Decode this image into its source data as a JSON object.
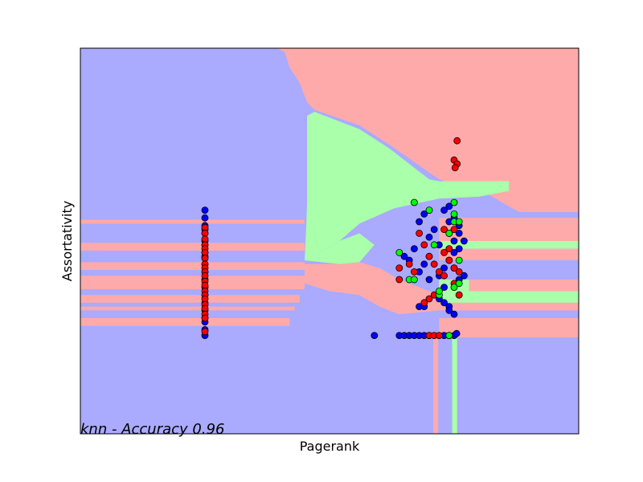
{
  "chart_data": {
    "type": "scatter",
    "title": "",
    "xlabel": "Pagerank",
    "ylabel": "Assortativity",
    "annotation": "knn - Accuracy 0.96",
    "xlim": [
      0,
      1
    ],
    "ylim": [
      0,
      1
    ],
    "grid": false,
    "ticks_visible": false,
    "colors": {
      "region_blue": "#aaaaff",
      "region_red": "#ffaaaa",
      "region_green": "#aaffaa",
      "point_blue": "#0000ff",
      "point_red": "#ff0000",
      "point_green": "#00ff00",
      "point_edge": "#000000"
    },
    "decision_regions": [
      {
        "class": "red",
        "polygon": [
          [
            0.395,
            1
          ],
          [
            1,
            1
          ],
          [
            1,
            0.575
          ],
          [
            0.88,
            0.575
          ],
          [
            0.82,
            0.62
          ],
          [
            0.72,
            0.66
          ],
          [
            0.62,
            0.75
          ],
          [
            0.56,
            0.8
          ],
          [
            0.47,
            0.84
          ],
          [
            0.455,
            0.86
          ],
          [
            0.44,
            0.91
          ],
          [
            0.42,
            0.95
          ],
          [
            0.41,
            0.99
          ]
        ]
      },
      {
        "class": "green",
        "polygon": [
          [
            0.455,
            0.825
          ],
          [
            0.47,
            0.835
          ],
          [
            0.56,
            0.79
          ],
          [
            0.62,
            0.74
          ],
          [
            0.7,
            0.66
          ],
          [
            0.72,
            0.655
          ],
          [
            0.72,
            0.61
          ],
          [
            0.63,
            0.585
          ],
          [
            0.56,
            0.545
          ],
          [
            0.52,
            0.5
          ],
          [
            0.45,
            0.45
          ],
          [
            0.453,
            0.53
          ],
          [
            0.455,
            0.6
          ]
        ]
      },
      {
        "class": "green",
        "polygon": [
          [
            0.72,
            0.655
          ],
          [
            0.86,
            0.655
          ],
          [
            0.86,
            0.63
          ],
          [
            0.8,
            0.615
          ],
          [
            0.72,
            0.61
          ]
        ]
      },
      {
        "class": "green",
        "polygon": [
          [
            0.45,
            0.45
          ],
          [
            0.52,
            0.5
          ],
          [
            0.56,
            0.52
          ],
          [
            0.59,
            0.49
          ],
          [
            0.56,
            0.445
          ],
          [
            0.52,
            0.44
          ]
        ]
      },
      {
        "class": "red",
        "polygon": [
          [
            0.45,
            0.44
          ],
          [
            0.52,
            0.44
          ],
          [
            0.56,
            0.445
          ],
          [
            0.6,
            0.43
          ],
          [
            0.64,
            0.4
          ],
          [
            0.7,
            0.37
          ],
          [
            0.72,
            0.36
          ],
          [
            0.72,
            0.32
          ],
          [
            0.64,
            0.31
          ],
          [
            0.6,
            0.33
          ],
          [
            0.56,
            0.36
          ],
          [
            0.5,
            0.37
          ],
          [
            0.45,
            0.39
          ]
        ]
      },
      {
        "class": "red",
        "polygon": [
          [
            0.72,
            0.36
          ],
          [
            1,
            0.36
          ],
          [
            1,
            0.32
          ],
          [
            0.72,
            0.32
          ]
        ]
      },
      {
        "class": "red",
        "polygon": [
          [
            0.72,
            0.4
          ],
          [
            1,
            0.4
          ],
          [
            1,
            0.37
          ],
          [
            0.72,
            0.37
          ]
        ]
      },
      {
        "class": "red",
        "polygon": [
          [
            0.72,
            0.3
          ],
          [
            1,
            0.3
          ],
          [
            1,
            0.25
          ],
          [
            0.72,
            0.25
          ]
        ]
      },
      {
        "class": "green",
        "polygon": [
          [
            0.72,
            0.5
          ],
          [
            1,
            0.5
          ],
          [
            1,
            0.48
          ],
          [
            0.72,
            0.48
          ]
        ]
      },
      {
        "class": "green",
        "polygon": [
          [
            0.72,
            0.4
          ],
          [
            0.78,
            0.4
          ],
          [
            0.78,
            0.37
          ],
          [
            0.72,
            0.37
          ]
        ]
      },
      {
        "class": "green",
        "polygon": [
          [
            0.72,
            0.37
          ],
          [
            1,
            0.37
          ],
          [
            1,
            0.34
          ],
          [
            0.72,
            0.34
          ]
        ]
      },
      {
        "class": "red",
        "polygon": [
          [
            0.72,
            0.48
          ],
          [
            1,
            0.48
          ],
          [
            1,
            0.45
          ],
          [
            0.72,
            0.45
          ]
        ]
      },
      {
        "class": "red",
        "polygon": [
          [
            0.72,
            0.56
          ],
          [
            1,
            0.56
          ],
          [
            1,
            0.5
          ],
          [
            0.72,
            0.5
          ]
        ]
      },
      {
        "class": "red",
        "polygon": [
          [
            0,
            0.555
          ],
          [
            0.45,
            0.555
          ],
          [
            0.45,
            0.545
          ],
          [
            0,
            0.545
          ]
        ]
      },
      {
        "class": "red",
        "polygon": [
          [
            0,
            0.495
          ],
          [
            0.45,
            0.495
          ],
          [
            0.45,
            0.475
          ],
          [
            0,
            0.475
          ]
        ]
      },
      {
        "class": "red",
        "polygon": [
          [
            0,
            0.445
          ],
          [
            0.45,
            0.445
          ],
          [
            0.45,
            0.425
          ],
          [
            0,
            0.425
          ]
        ]
      },
      {
        "class": "red",
        "polygon": [
          [
            0,
            0.41
          ],
          [
            0.45,
            0.41
          ],
          [
            0.45,
            0.375
          ],
          [
            0,
            0.375
          ]
        ]
      },
      {
        "class": "red",
        "polygon": [
          [
            0,
            0.36
          ],
          [
            0.44,
            0.36
          ],
          [
            0.44,
            0.34
          ],
          [
            0,
            0.34
          ]
        ]
      },
      {
        "class": "red",
        "polygon": [
          [
            0,
            0.33
          ],
          [
            0.43,
            0.33
          ],
          [
            0.43,
            0.32
          ],
          [
            0,
            0.32
          ]
        ]
      },
      {
        "class": "red",
        "polygon": [
          [
            0,
            0.3
          ],
          [
            0.42,
            0.3
          ],
          [
            0.42,
            0.28
          ],
          [
            0,
            0.28
          ]
        ]
      },
      {
        "class": "red",
        "polygon": [
          [
            0.708,
            0.26
          ],
          [
            0.718,
            0.26
          ],
          [
            0.718,
            0
          ],
          [
            0.708,
            0
          ]
        ]
      },
      {
        "class": "green",
        "polygon": [
          [
            0.746,
            0.26
          ],
          [
            0.756,
            0.26
          ],
          [
            0.756,
            0
          ],
          [
            0.746,
            0
          ]
        ]
      }
    ],
    "series": [
      {
        "class": "blue",
        "points": [
          [
            0.25,
            0.58
          ],
          [
            0.25,
            0.56
          ],
          [
            0.25,
            0.54
          ],
          [
            0.25,
            0.53
          ],
          [
            0.25,
            0.52
          ],
          [
            0.25,
            0.5
          ],
          [
            0.25,
            0.49
          ],
          [
            0.25,
            0.47
          ],
          [
            0.25,
            0.46
          ],
          [
            0.25,
            0.44
          ],
          [
            0.25,
            0.42
          ],
          [
            0.25,
            0.4
          ],
          [
            0.25,
            0.38
          ],
          [
            0.25,
            0.36
          ],
          [
            0.25,
            0.34
          ],
          [
            0.25,
            0.32
          ],
          [
            0.25,
            0.3
          ],
          [
            0.25,
            0.29
          ],
          [
            0.25,
            0.27
          ],
          [
            0.25,
            0.255
          ],
          [
            0.59,
            0.255
          ],
          [
            0.64,
            0.255
          ],
          [
            0.65,
            0.255
          ],
          [
            0.66,
            0.255
          ],
          [
            0.67,
            0.255
          ],
          [
            0.68,
            0.255
          ],
          [
            0.69,
            0.255
          ],
          [
            0.7,
            0.255
          ],
          [
            0.73,
            0.255
          ],
          [
            0.74,
            0.255
          ],
          [
            0.75,
            0.255
          ],
          [
            0.755,
            0.26
          ],
          [
            0.65,
            0.46
          ],
          [
            0.66,
            0.45
          ],
          [
            0.67,
            0.48
          ],
          [
            0.68,
            0.42
          ],
          [
            0.69,
            0.44
          ],
          [
            0.7,
            0.51
          ],
          [
            0.7,
            0.46
          ],
          [
            0.71,
            0.53
          ],
          [
            0.72,
            0.49
          ],
          [
            0.72,
            0.41
          ],
          [
            0.73,
            0.43
          ],
          [
            0.73,
            0.38
          ],
          [
            0.73,
            0.34
          ],
          [
            0.74,
            0.45
          ],
          [
            0.74,
            0.52
          ],
          [
            0.74,
            0.55
          ],
          [
            0.75,
            0.5
          ],
          [
            0.75,
            0.47
          ],
          [
            0.75,
            0.43
          ],
          [
            0.76,
            0.52
          ],
          [
            0.76,
            0.48
          ],
          [
            0.76,
            0.4
          ],
          [
            0.76,
            0.36
          ],
          [
            0.74,
            0.33
          ],
          [
            0.72,
            0.35
          ],
          [
            0.7,
            0.4
          ],
          [
            0.68,
            0.33
          ],
          [
            0.69,
            0.57
          ],
          [
            0.68,
            0.55
          ],
          [
            0.73,
            0.58
          ],
          [
            0.74,
            0.59
          ],
          [
            0.75,
            0.56
          ],
          [
            0.76,
            0.54
          ],
          [
            0.77,
            0.5
          ],
          [
            0.77,
            0.41
          ],
          [
            0.75,
            0.31
          ],
          [
            0.74,
            0.32
          ],
          [
            0.69,
            0.33
          ]
        ]
      },
      {
        "class": "red",
        "points": [
          [
            0.25,
            0.535
          ],
          [
            0.25,
            0.52
          ],
          [
            0.25,
            0.505
          ],
          [
            0.25,
            0.49
          ],
          [
            0.25,
            0.48
          ],
          [
            0.25,
            0.47
          ],
          [
            0.25,
            0.455
          ],
          [
            0.25,
            0.44
          ],
          [
            0.25,
            0.43
          ],
          [
            0.25,
            0.42
          ],
          [
            0.25,
            0.41
          ],
          [
            0.25,
            0.395
          ],
          [
            0.25,
            0.385
          ],
          [
            0.25,
            0.37
          ],
          [
            0.25,
            0.36
          ],
          [
            0.25,
            0.35
          ],
          [
            0.25,
            0.335
          ],
          [
            0.25,
            0.325
          ],
          [
            0.25,
            0.31
          ],
          [
            0.25,
            0.3
          ],
          [
            0.25,
            0.265
          ],
          [
            0.756,
            0.76
          ],
          [
            0.75,
            0.71
          ],
          [
            0.756,
            0.7
          ],
          [
            0.752,
            0.69
          ],
          [
            0.68,
            0.52
          ],
          [
            0.69,
            0.49
          ],
          [
            0.66,
            0.44
          ],
          [
            0.64,
            0.43
          ],
          [
            0.64,
            0.4
          ],
          [
            0.67,
            0.42
          ],
          [
            0.7,
            0.46
          ],
          [
            0.71,
            0.44
          ],
          [
            0.72,
            0.42
          ],
          [
            0.73,
            0.47
          ],
          [
            0.74,
            0.48
          ],
          [
            0.74,
            0.45
          ],
          [
            0.75,
            0.43
          ],
          [
            0.75,
            0.39
          ],
          [
            0.76,
            0.42
          ],
          [
            0.76,
            0.36
          ],
          [
            0.73,
            0.41
          ],
          [
            0.71,
            0.36
          ],
          [
            0.7,
            0.35
          ],
          [
            0.69,
            0.34
          ],
          [
            0.73,
            0.53
          ],
          [
            0.74,
            0.52
          ],
          [
            0.75,
            0.53
          ],
          [
            0.7,
            0.255
          ],
          [
            0.71,
            0.255
          ],
          [
            0.72,
            0.255
          ]
        ]
      },
      {
        "class": "green",
        "points": [
          [
            0.67,
            0.6
          ],
          [
            0.7,
            0.58
          ],
          [
            0.75,
            0.6
          ],
          [
            0.75,
            0.55
          ],
          [
            0.74,
            0.52
          ],
          [
            0.71,
            0.49
          ],
          [
            0.64,
            0.47
          ],
          [
            0.66,
            0.4
          ],
          [
            0.67,
            0.4
          ],
          [
            0.72,
            0.36
          ],
          [
            0.72,
            0.37
          ],
          [
            0.75,
            0.38
          ],
          [
            0.76,
            0.39
          ],
          [
            0.75,
            0.57
          ],
          [
            0.76,
            0.55
          ],
          [
            0.76,
            0.45
          ],
          [
            0.74,
            0.255
          ]
        ]
      }
    ]
  }
}
